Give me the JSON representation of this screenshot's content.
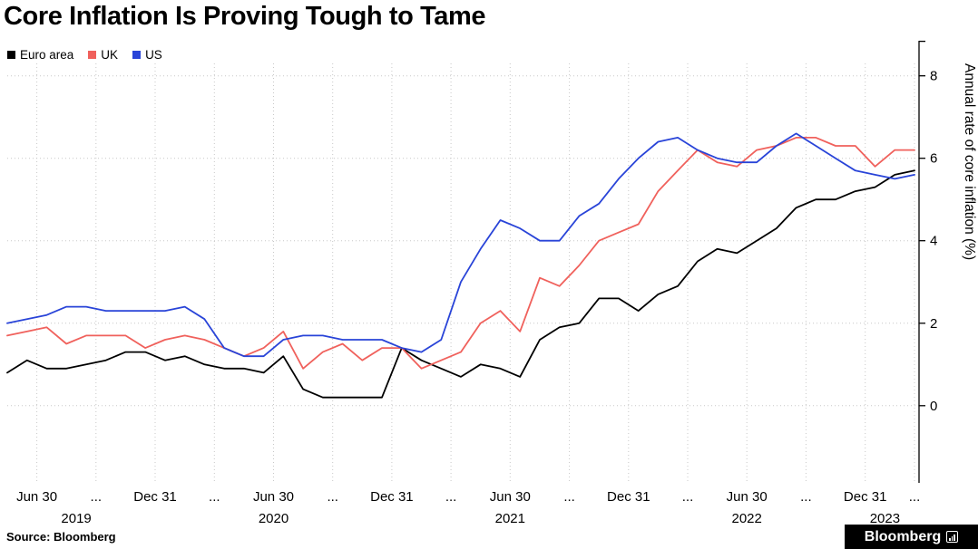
{
  "title": "Core Inflation Is Proving Tough to Tame",
  "footer": {
    "source": "Source: Bloomberg",
    "brand": "Bloomberg",
    "brand_icon": "bloomberg-terminal-icon"
  },
  "chart_data": {
    "type": "line",
    "title": "Core Inflation Is Proving Tough to Tame",
    "xlabel": "",
    "ylabel": "Annual rate of core inflation (%)",
    "ylim": [
      -1.85,
      8.3
    ],
    "yticks": [
      0,
      2,
      4,
      6,
      8
    ],
    "grid": true,
    "legend_position": "top-left",
    "months": [
      "2019-05",
      "2019-06",
      "2019-07",
      "2019-08",
      "2019-09",
      "2019-10",
      "2019-11",
      "2019-12",
      "2020-01",
      "2020-02",
      "2020-03",
      "2020-04",
      "2020-05",
      "2020-06",
      "2020-07",
      "2020-08",
      "2020-09",
      "2020-10",
      "2020-11",
      "2020-12",
      "2021-01",
      "2021-02",
      "2021-03",
      "2021-04",
      "2021-05",
      "2021-06",
      "2021-07",
      "2021-08",
      "2021-09",
      "2021-10",
      "2021-11",
      "2021-12",
      "2022-01",
      "2022-02",
      "2022-03",
      "2022-04",
      "2022-05",
      "2022-06",
      "2022-07",
      "2022-08",
      "2022-09",
      "2022-10",
      "2022-11",
      "2022-12",
      "2023-01",
      "2023-02",
      "2023-03"
    ],
    "xticks": [
      {
        "month": "2019-06",
        "label": "Jun 30"
      },
      {
        "month": "2019-09",
        "label": "..."
      },
      {
        "month": "2019-12",
        "label": "Dec 31"
      },
      {
        "month": "2020-03",
        "label": "..."
      },
      {
        "month": "2020-06",
        "label": "Jun 30"
      },
      {
        "month": "2020-09",
        "label": "..."
      },
      {
        "month": "2020-12",
        "label": "Dec 31"
      },
      {
        "month": "2021-03",
        "label": "..."
      },
      {
        "month": "2021-06",
        "label": "Jun 30"
      },
      {
        "month": "2021-09",
        "label": "..."
      },
      {
        "month": "2021-12",
        "label": "Dec 31"
      },
      {
        "month": "2022-03",
        "label": "..."
      },
      {
        "month": "2022-06",
        "label": "Jun 30"
      },
      {
        "month": "2022-09",
        "label": "..."
      },
      {
        "month": "2022-12",
        "label": "Dec 31"
      },
      {
        "month": "2023-03",
        "label": "..."
      }
    ],
    "year_labels": [
      {
        "month": "2019-08",
        "label": "2019"
      },
      {
        "month": "2020-06",
        "label": "2020"
      },
      {
        "month": "2021-06",
        "label": "2021"
      },
      {
        "month": "2022-06",
        "label": "2022"
      },
      {
        "month": "2023-01",
        "label": "2023"
      }
    ],
    "series": [
      {
        "name": "Euro area",
        "color": "#000000",
        "values": [
          0.8,
          1.1,
          0.9,
          0.9,
          1.0,
          1.1,
          1.3,
          1.3,
          1.1,
          1.2,
          1.0,
          0.9,
          0.9,
          0.8,
          1.2,
          0.4,
          0.2,
          0.2,
          0.2,
          0.2,
          1.4,
          1.1,
          0.9,
          0.7,
          1.0,
          0.9,
          0.7,
          1.6,
          1.9,
          2.0,
          2.6,
          2.6,
          2.3,
          2.7,
          2.9,
          3.5,
          3.8,
          3.7,
          4.0,
          4.3,
          4.8,
          5.0,
          5.0,
          5.2,
          5.3,
          5.6,
          5.7
        ]
      },
      {
        "name": "UK",
        "color": "#f0615c",
        "values": [
          1.7,
          1.8,
          1.9,
          1.5,
          1.7,
          1.7,
          1.7,
          1.4,
          1.6,
          1.7,
          1.6,
          1.4,
          1.2,
          1.4,
          1.8,
          0.9,
          1.3,
          1.5,
          1.1,
          1.4,
          1.4,
          0.9,
          1.1,
          1.3,
          2.0,
          2.3,
          1.8,
          3.1,
          2.9,
          3.4,
          4.0,
          4.2,
          4.4,
          5.2,
          5.7,
          6.2,
          5.9,
          5.8,
          6.2,
          6.3,
          6.5,
          6.5,
          6.3,
          6.3,
          5.8,
          6.2,
          6.2
        ]
      },
      {
        "name": "US",
        "color": "#2944d8",
        "values": [
          2.0,
          2.1,
          2.2,
          2.4,
          2.4,
          2.3,
          2.3,
          2.3,
          2.3,
          2.4,
          2.1,
          1.4,
          1.2,
          1.2,
          1.6,
          1.7,
          1.7,
          1.6,
          1.6,
          1.6,
          1.4,
          1.3,
          1.6,
          3.0,
          3.8,
          4.5,
          4.3,
          4.0,
          4.0,
          4.6,
          4.9,
          5.5,
          6.0,
          6.4,
          6.5,
          6.2,
          6.0,
          5.9,
          5.9,
          6.3,
          6.6,
          6.3,
          6.0,
          5.7,
          5.6,
          5.5,
          5.6
        ]
      }
    ]
  }
}
